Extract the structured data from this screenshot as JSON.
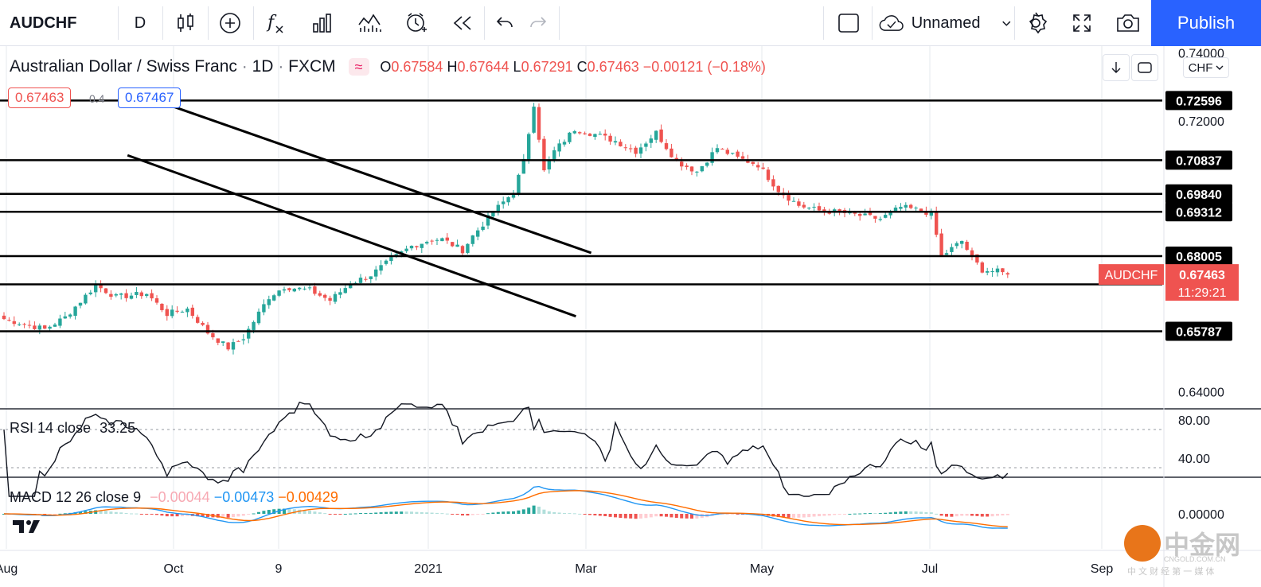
{
  "toolbar": {
    "symbol": "AUDCHF",
    "interval": "D",
    "layout_name": "Unnamed",
    "publish_label": "Publish",
    "icons": [
      "candles-icon",
      "add-indicator-icon",
      "fx-icon",
      "compare-icon",
      "indicators-icon",
      "alert-icon",
      "replay-icon",
      "undo-icon",
      "redo-icon",
      "fullscreen-square-icon",
      "cloud-icon",
      "chevron-down-icon",
      "settings-icon",
      "expand-icon",
      "camera-icon"
    ]
  },
  "legend": {
    "title": "Australian Dollar / Swiss Franc",
    "dot1": "·",
    "interval": "1D",
    "dot2": "·",
    "exchange": "FXCM",
    "o_label": "O",
    "o": "0.67584",
    "h_label": "H",
    "h": "0.67644",
    "l_label": "L",
    "l": "0.67291",
    "c_label": "C",
    "c": "0.67463",
    "change": "−0.00121 (−0.18%)",
    "bid": "0.67463",
    "spread": "0.4",
    "ask": "0.67467"
  },
  "price_axis": {
    "currency": "CHF",
    "ticks": [
      "0.74000",
      "0.72000",
      "0.64000"
    ],
    "last_label": "AUDCHF",
    "last_price": "0.67463",
    "countdown": "11:29:21"
  },
  "colors": {
    "up": "#26a69a",
    "down": "#ef5350",
    "rsi": "#131722",
    "macd": "#2196f3",
    "signal": "#ff6d00",
    "accent": "#2962ff"
  },
  "chart_data": [
    {
      "type": "candlestick",
      "symbol": "AUDCHF",
      "x_labels": [
        "Aug",
        "Oct",
        "9",
        "2021",
        "Mar",
        "May",
        "Jul",
        "Sep"
      ],
      "ylim": [
        0.635,
        0.742
      ],
      "y_ticks": [
        "0.74000",
        "0.72000",
        "0.64000"
      ],
      "horizontal_levels": [
        "0.72596",
        "0.70837",
        "0.69840",
        "0.69312",
        "0.68005",
        "0.67171",
        "0.65787"
      ],
      "trend_channel": {
        "upper": [
          [
            25,
            0.7252
          ],
          [
            109,
            0.681
          ]
        ],
        "lower": [
          [
            18,
            0.7098
          ],
          [
            106,
            0.6623
          ]
        ]
      },
      "anchors": [
        [
          0,
          0.6615
        ],
        [
          8,
          0.6585
        ],
        [
          12,
          0.662
        ],
        [
          18,
          0.6715
        ],
        [
          22,
          0.668
        ],
        [
          28,
          0.669
        ],
        [
          32,
          0.663
        ],
        [
          36,
          0.6645
        ],
        [
          40,
          0.6575
        ],
        [
          44,
          0.653
        ],
        [
          47,
          0.656
        ],
        [
          52,
          0.668
        ],
        [
          55,
          0.671
        ],
        [
          60,
          0.67
        ],
        [
          64,
          0.667
        ],
        [
          68,
          0.672
        ],
        [
          72,
          0.6745
        ],
        [
          76,
          0.679
        ],
        [
          80,
          0.683
        ],
        [
          84,
          0.685
        ],
        [
          86,
          0.685
        ],
        [
          90,
          0.6818
        ],
        [
          92,
          0.686
        ],
        [
          96,
          0.693
        ],
        [
          100,
          0.699
        ],
        [
          102,
          0.708
        ],
        [
          104,
          0.725
        ],
        [
          106,
          0.705
        ],
        [
          108,
          0.711
        ],
        [
          112,
          0.7175
        ],
        [
          116,
          0.716
        ],
        [
          120,
          0.714
        ],
        [
          124,
          0.711
        ],
        [
          128,
          0.7165
        ],
        [
          132,
          0.708
        ],
        [
          136,
          0.705
        ],
        [
          140,
          0.712
        ],
        [
          144,
          0.709
        ],
        [
          148,
          0.707
        ],
        [
          152,
          0.6995
        ],
        [
          156,
          0.695
        ],
        [
          160,
          0.6935
        ],
        [
          164,
          0.693
        ],
        [
          168,
          0.692
        ],
        [
          172,
          0.691
        ],
        [
          176,
          0.6945
        ],
        [
          180,
          0.6935
        ],
        [
          182,
          0.6925
        ],
        [
          184,
          0.68
        ],
        [
          188,
          0.6845
        ],
        [
          190,
          0.6795
        ],
        [
          192,
          0.676
        ],
        [
          195,
          0.6755
        ],
        [
          197,
          0.6746
        ]
      ],
      "last_close": 0.67463
    },
    {
      "type": "line",
      "name": "RSI 14 close",
      "last_value": "33.25",
      "ylim": [
        20,
        90
      ],
      "y_ticks": [
        "80.00",
        "40.00"
      ],
      "bands": [
        70,
        30
      ]
    },
    {
      "type": "line+histogram",
      "name": "MACD 12 26 close 9",
      "values": [
        "−0.00044",
        "−0.00473",
        "−0.00429"
      ],
      "series": [
        {
          "name": "MACD",
          "color": "#2196f3"
        },
        {
          "name": "Signal",
          "color": "#ff6d00"
        },
        {
          "name": "Histogram"
        }
      ],
      "ylim": [
        -0.012,
        0.012
      ],
      "y_ticks": [
        "0.00000"
      ]
    }
  ],
  "watermark": {
    "brand": "中金网",
    "url": "CNGOLD.COM.CN",
    "tagline": "中 文 财 经 第 一 媒 体"
  }
}
